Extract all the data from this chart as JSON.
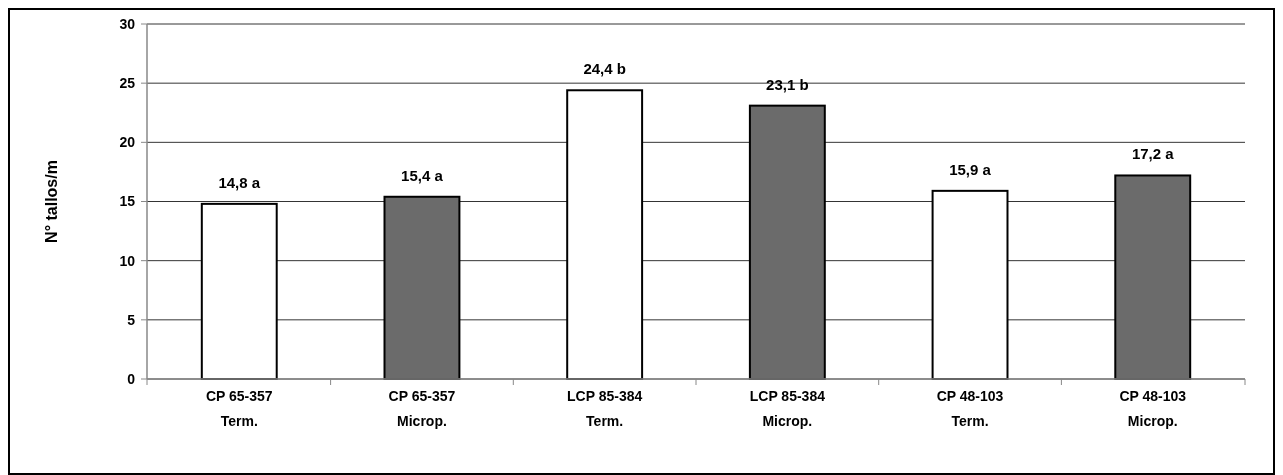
{
  "chart_data": {
    "type": "bar",
    "ylabel": "N° tallos/m",
    "categories": [
      "CP 65-357\nTerm.",
      "CP 65-357\nMicrop.",
      "LCP 85-384\nTerm.",
      "LCP 85-384\nMicrop.",
      "CP 48-103\nTerm.",
      "CP 48-103\nMicrop."
    ],
    "values": [
      14.8,
      15.4,
      24.4,
      23.1,
      15.9,
      17.2
    ],
    "colors": [
      "#ffffff",
      "#6b6b6b",
      "#ffffff",
      "#6b6b6b",
      "#ffffff",
      "#6b6b6b"
    ],
    "value_labels": [
      "14,8 a",
      "15,4 a",
      "24,4 b",
      "23,1 b",
      "15,9 a",
      "17,2 a"
    ],
    "ylim": [
      0,
      30
    ],
    "yticks": [
      0,
      5,
      10,
      15,
      20,
      25,
      30
    ],
    "grid": "y"
  }
}
